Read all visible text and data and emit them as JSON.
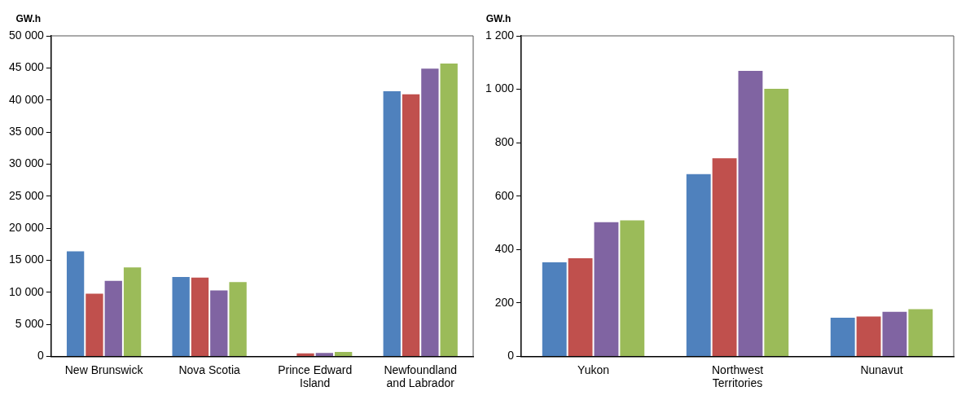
{
  "chart_data": [
    {
      "type": "bar",
      "ylabel": "GW.h",
      "categories": [
        "New Brunswick",
        "Nova Scotia",
        "Prince Edward Island",
        "Newfoundland and Labrador"
      ],
      "series": [
        {
          "color": "#4f81bd",
          "values": [
            16500,
            12500,
            0,
            41500
          ]
        },
        {
          "color": "#c0504d",
          "values": [
            9900,
            12400,
            600,
            41000
          ]
        },
        {
          "color": "#8064a2",
          "values": [
            11900,
            10400,
            650,
            45000
          ]
        },
        {
          "color": "#9bbb59",
          "values": [
            14000,
            11700,
            800,
            45800
          ]
        }
      ],
      "ylim": [
        0,
        50000
      ],
      "yticks": [
        0,
        {
          "value": 5000,
          "label": "5 000"
        },
        {
          "value": 10000,
          "label": "10 000"
        },
        {
          "value": 15000,
          "label": "15 000"
        },
        {
          "value": 20000,
          "label": "20 000"
        },
        {
          "value": 25000,
          "label": "25 000"
        },
        {
          "value": 30000,
          "label": "30 000"
        },
        {
          "value": 35000,
          "label": "35 000"
        },
        {
          "value": 40000,
          "label": "40 000"
        },
        {
          "value": 45000,
          "label": "45 000"
        },
        {
          "value": 50000,
          "label": "50 000"
        }
      ],
      "grid": false,
      "legend": false
    },
    {
      "type": "bar",
      "ylabel": "GW.h",
      "categories": [
        "Yukon",
        "Northwest Territories",
        "Nunavut"
      ],
      "series": [
        {
          "color": "#4f81bd",
          "values": [
            355,
            685,
            148
          ]
        },
        {
          "color": "#c0504d",
          "values": [
            370,
            745,
            152
          ]
        },
        {
          "color": "#8064a2",
          "values": [
            505,
            1072,
            170
          ]
        },
        {
          "color": "#9bbb59",
          "values": [
            512,
            1005,
            180
          ]
        }
      ],
      "ylim": [
        0,
        1200
      ],
      "yticks": [
        0,
        200,
        400,
        600,
        800,
        {
          "value": 1000,
          "label": "1 000"
        },
        {
          "value": 1200,
          "label": "1 200"
        }
      ],
      "grid": false,
      "legend": false
    }
  ]
}
